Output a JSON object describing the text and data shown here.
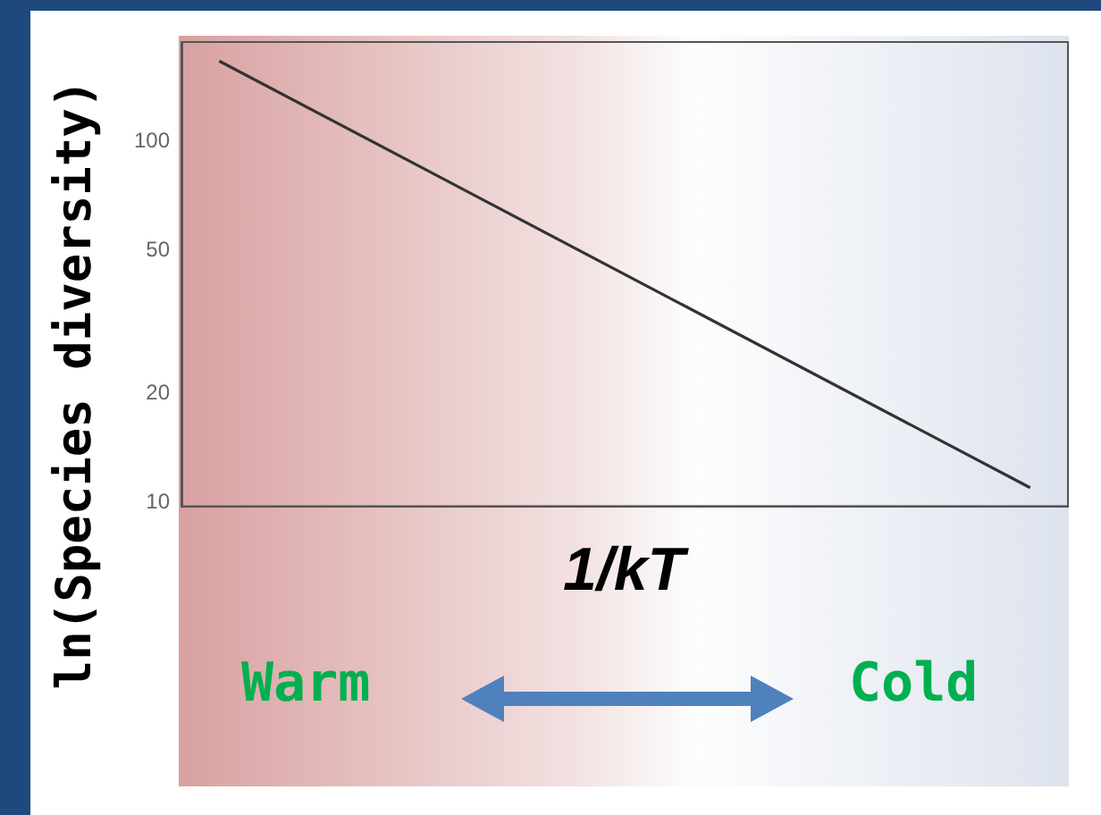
{
  "chart_data": {
    "type": "line",
    "xlabel": "1/kT",
    "ylabel": "ln(Species diversity)",
    "categories": [
      null,
      null,
      null,
      null,
      null,
      null,
      null,
      null,
      null,
      null,
      null,
      null
    ],
    "series": [
      {
        "color": "#333333",
        "values": [
          167,
          null,
          null,
          null,
          null,
          null,
          null,
          null,
          null,
          null,
          null,
          11.0
        ]
      }
    ],
    "ylim": [
      9.8,
      187
    ],
    "yticks": [
      10,
      20,
      50,
      100
    ],
    "log": "y",
    "grid": false,
    "legend": false,
    "marker": "none",
    "line_style": "solid",
    "tick_labels": "y",
    "annotations": [
      "Warm",
      "Cold"
    ]
  }
}
